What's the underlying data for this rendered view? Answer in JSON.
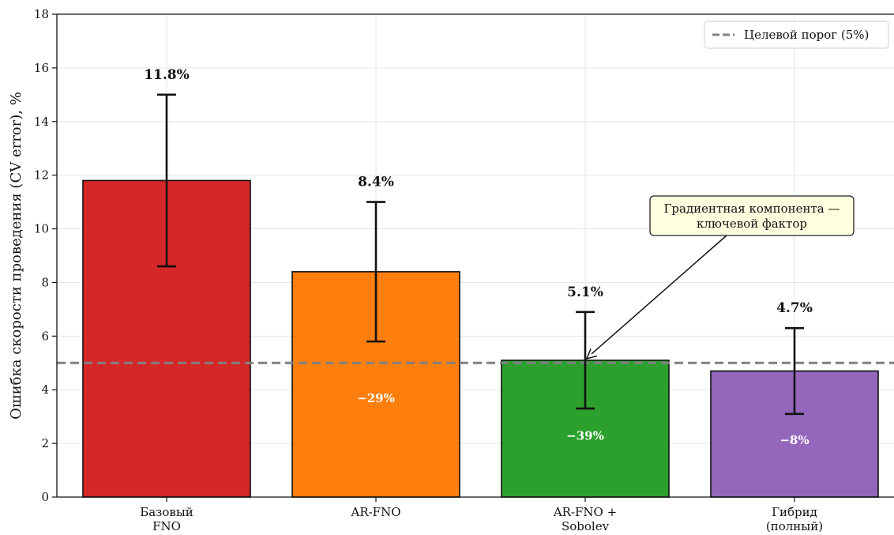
{
  "chart_data": {
    "type": "bar",
    "categories": [
      [
        "Базовый",
        "FNO"
      ],
      [
        "AR-FNO"
      ],
      [
        "AR-FNO +",
        "Sobolev"
      ],
      [
        "Гибрид",
        "(полный)"
      ]
    ],
    "values": [
      11.8,
      8.4,
      5.1,
      4.7
    ],
    "error_low": [
      8.6,
      5.8,
      3.3,
      3.1
    ],
    "error_high": [
      15.0,
      11.0,
      6.9,
      6.3
    ],
    "value_labels": [
      "11.8%",
      "8.4%",
      "5.1%",
      "4.7%"
    ],
    "change_labels": [
      "",
      "−29%",
      "−39%",
      "−8%"
    ],
    "colors": [
      "#d62728",
      "#ff7f0e",
      "#2ca02c",
      "#9467bd"
    ],
    "ylabel": "Ошибка скорости проведения (CV error), %",
    "ylim": [
      0,
      18
    ],
    "yticks": [
      0,
      2,
      4,
      6,
      8,
      10,
      12,
      14,
      16,
      18
    ],
    "grid": true,
    "threshold": {
      "value": 5,
      "label": "Целевой порог (5%)",
      "color": "#808080"
    },
    "legend_position": "top-right",
    "annotation": {
      "lines": [
        "Градиентная компонента —",
        "ключевой фактор"
      ],
      "target_category_index": 2,
      "target_value": 5.1
    }
  }
}
